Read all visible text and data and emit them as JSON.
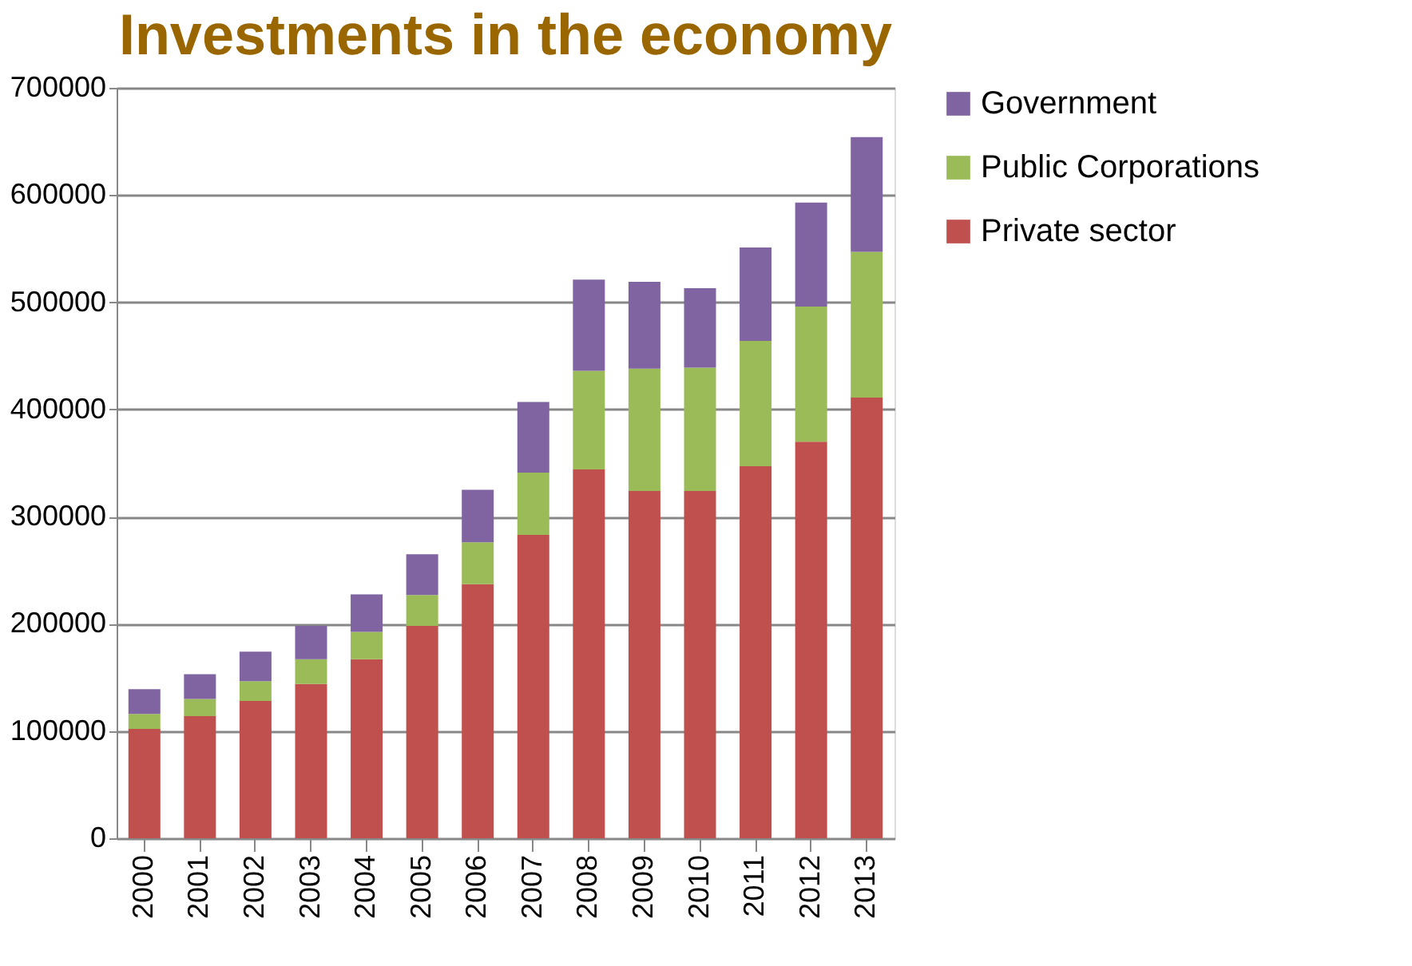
{
  "chart_data": {
    "type": "bar",
    "title": "Investments in the economy",
    "stacked": true,
    "categories": [
      "2000",
      "2001",
      "2002",
      "2003",
      "2004",
      "2005",
      "2006",
      "2007",
      "2008",
      "2009",
      "2010",
      "2011",
      "2012",
      "2013"
    ],
    "series": [
      {
        "name": "Private sector",
        "color": "#c0504d",
        "values": [
          102000,
          114000,
          128000,
          144000,
          167000,
          198000,
          237000,
          283000,
          344000,
          324000,
          324000,
          347000,
          370000,
          411000
        ]
      },
      {
        "name": "Public Corporations",
        "color": "#9bbb59",
        "values": [
          14000,
          16000,
          18500,
          23000,
          25500,
          29000,
          39000,
          58000,
          92000,
          114000,
          115000,
          117000,
          126000,
          136000
        ]
      },
      {
        "name": "Government",
        "color": "#8064a2",
        "values": [
          23000,
          23000,
          27500,
          31000,
          35000,
          38000,
          49000,
          66000,
          85000,
          81000,
          74000,
          87000,
          97000,
          107000
        ]
      }
    ],
    "ylim": [
      0,
      700000
    ],
    "yticks": [
      0,
      100000,
      200000,
      300000,
      400000,
      500000,
      600000,
      700000
    ],
    "grid": "y",
    "legend": "right"
  }
}
